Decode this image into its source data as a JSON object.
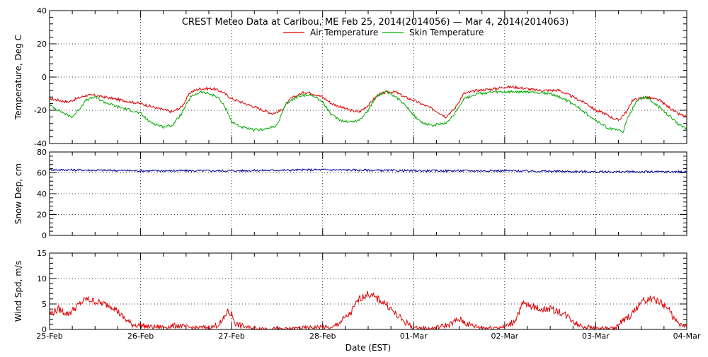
{
  "title": "CREST Meteo Data at Caribou, ME   Feb 25, 2014(2014056) — Mar  4, 2014(2014063)",
  "xlabel": "Date (EST)",
  "x_ticks": [
    "25-Feb",
    "26-Feb",
    "27-Feb",
    "28-Feb",
    "01-Mar",
    "02-Mar",
    "03-Mar",
    "04-Mar"
  ],
  "colors": {
    "air": "#dd0000",
    "skin": "#00aa00",
    "snow": "#000099",
    "wind": "#dd0000"
  },
  "chart_data": [
    {
      "type": "line",
      "ylabel": "Temperature, Deg C",
      "ylim": [
        -40,
        40
      ],
      "yticks": [
        "-40",
        "-20",
        "0",
        "20",
        "40"
      ],
      "xlim_days": [
        0,
        7
      ],
      "legend_position": "top-center",
      "series": [
        {
          "name": "Air Temperature",
          "color": "#dd0000",
          "points": [
            [
              0,
              -13
            ],
            [
              0.1,
              -14
            ],
            [
              0.2,
              -15
            ],
            [
              0.3,
              -13
            ],
            [
              0.4,
              -11
            ],
            [
              0.5,
              -11
            ],
            [
              0.6,
              -12
            ],
            [
              0.8,
              -14
            ],
            [
              1.0,
              -16
            ],
            [
              1.2,
              -19
            ],
            [
              1.35,
              -21
            ],
            [
              1.45,
              -18
            ],
            [
              1.55,
              -9
            ],
            [
              1.65,
              -7
            ],
            [
              1.8,
              -7
            ],
            [
              1.9,
              -9
            ],
            [
              2.0,
              -13
            ],
            [
              2.2,
              -17
            ],
            [
              2.35,
              -20
            ],
            [
              2.45,
              -22
            ],
            [
              2.55,
              -20
            ],
            [
              2.65,
              -13
            ],
            [
              2.8,
              -9
            ],
            [
              2.9,
              -10
            ],
            [
              3.0,
              -12
            ],
            [
              3.1,
              -16
            ],
            [
              3.3,
              -20
            ],
            [
              3.4,
              -21
            ],
            [
              3.5,
              -17
            ],
            [
              3.6,
              -11
            ],
            [
              3.7,
              -9
            ],
            [
              3.8,
              -9
            ],
            [
              3.9,
              -12
            ],
            [
              4.0,
              -14
            ],
            [
              4.2,
              -19
            ],
            [
              4.3,
              -22
            ],
            [
              4.35,
              -24
            ],
            [
              4.45,
              -19
            ],
            [
              4.55,
              -10
            ],
            [
              4.7,
              -8
            ],
            [
              4.9,
              -7
            ],
            [
              5.0,
              -6
            ],
            [
              5.1,
              -6
            ],
            [
              5.25,
              -7
            ],
            [
              5.35,
              -8
            ],
            [
              5.5,
              -8
            ],
            [
              5.6,
              -8
            ],
            [
              5.75,
              -12
            ],
            [
              5.9,
              -16
            ],
            [
              6.0,
              -20
            ],
            [
              6.1,
              -22
            ],
            [
              6.2,
              -25
            ],
            [
              6.25,
              -26
            ],
            [
              6.35,
              -20
            ],
            [
              6.4,
              -14
            ],
            [
              6.55,
              -12
            ],
            [
              6.7,
              -14
            ],
            [
              6.8,
              -18
            ],
            [
              6.9,
              -22
            ],
            [
              7.0,
              -24
            ]
          ]
        },
        {
          "name": "Skin Temperature",
          "color": "#00aa00",
          "points": [
            [
              0,
              -17
            ],
            [
              0.1,
              -20
            ],
            [
              0.2,
              -23
            ],
            [
              0.25,
              -24
            ],
            [
              0.3,
              -21
            ],
            [
              0.4,
              -14
            ],
            [
              0.5,
              -12
            ],
            [
              0.6,
              -15
            ],
            [
              0.75,
              -18
            ],
            [
              0.9,
              -20
            ],
            [
              1.0,
              -22
            ],
            [
              1.1,
              -27
            ],
            [
              1.25,
              -30
            ],
            [
              1.35,
              -29
            ],
            [
              1.45,
              -22
            ],
            [
              1.55,
              -12
            ],
            [
              1.65,
              -9
            ],
            [
              1.75,
              -10
            ],
            [
              1.85,
              -12
            ],
            [
              1.95,
              -20
            ],
            [
              2.0,
              -27
            ],
            [
              2.1,
              -30
            ],
            [
              2.25,
              -32
            ],
            [
              2.4,
              -31
            ],
            [
              2.5,
              -29
            ],
            [
              2.6,
              -16
            ],
            [
              2.75,
              -11
            ],
            [
              2.9,
              -11
            ],
            [
              3.0,
              -15
            ],
            [
              3.1,
              -23
            ],
            [
              3.2,
              -26
            ],
            [
              3.3,
              -27
            ],
            [
              3.4,
              -26
            ],
            [
              3.5,
              -20
            ],
            [
              3.6,
              -11
            ],
            [
              3.7,
              -9
            ],
            [
              3.8,
              -12
            ],
            [
              3.9,
              -16
            ],
            [
              4.0,
              -23
            ],
            [
              4.1,
              -28
            ],
            [
              4.2,
              -29
            ],
            [
              4.35,
              -28
            ],
            [
              4.45,
              -22
            ],
            [
              4.55,
              -13
            ],
            [
              4.7,
              -10
            ],
            [
              4.9,
              -9
            ],
            [
              5.1,
              -9
            ],
            [
              5.3,
              -9
            ],
            [
              5.5,
              -10
            ],
            [
              5.65,
              -13
            ],
            [
              5.8,
              -18
            ],
            [
              5.95,
              -24
            ],
            [
              6.05,
              -28
            ],
            [
              6.15,
              -31
            ],
            [
              6.25,
              -32
            ],
            [
              6.3,
              -33
            ],
            [
              6.35,
              -25
            ],
            [
              6.45,
              -14
            ],
            [
              6.55,
              -12
            ],
            [
              6.65,
              -16
            ],
            [
              6.8,
              -23
            ],
            [
              6.9,
              -28
            ],
            [
              7.0,
              -31
            ]
          ]
        }
      ]
    },
    {
      "type": "line",
      "ylabel": "Snow Dep, cm",
      "ylim": [
        0,
        80
      ],
      "yticks": [
        "0",
        "20",
        "40",
        "60",
        "80"
      ],
      "xlim_days": [
        0,
        7
      ],
      "series": [
        {
          "color": "#000099",
          "points": [
            [
              0,
              63
            ],
            [
              1,
              62
            ],
            [
              2,
              62
            ],
            [
              3,
              63
            ],
            [
              4,
              62
            ],
            [
              5,
              62
            ],
            [
              6,
              61
            ],
            [
              7,
              61
            ]
          ]
        }
      ]
    },
    {
      "type": "line",
      "ylabel": "Wind Spd, m/s",
      "ylim": [
        0,
        15
      ],
      "yticks": [
        "0",
        "5",
        "10",
        "15"
      ],
      "xlim_days": [
        0,
        7
      ],
      "series": [
        {
          "color": "#dd0000",
          "points": [
            [
              0,
              3
            ],
            [
              0.1,
              4
            ],
            [
              0.2,
              3
            ],
            [
              0.3,
              4.5
            ],
            [
              0.4,
              6
            ],
            [
              0.5,
              5.5
            ],
            [
              0.6,
              5
            ],
            [
              0.7,
              4.5
            ],
            [
              0.8,
              2.5
            ],
            [
              0.9,
              1
            ],
            [
              1.0,
              0.8
            ],
            [
              1.1,
              0.5
            ],
            [
              1.3,
              0.5
            ],
            [
              1.4,
              0.8
            ],
            [
              1.5,
              0.5
            ],
            [
              1.6,
              0.3
            ],
            [
              1.8,
              0.5
            ],
            [
              1.9,
              1.5
            ],
            [
              1.95,
              3.5
            ],
            [
              2.0,
              3
            ],
            [
              2.05,
              1
            ],
            [
              2.2,
              0.3
            ],
            [
              2.4,
              0.2
            ],
            [
              2.6,
              0.1
            ],
            [
              2.8,
              0.3
            ],
            [
              3.0,
              0.5
            ],
            [
              3.1,
              0.2
            ],
            [
              3.3,
              3
            ],
            [
              3.4,
              6
            ],
            [
              3.5,
              7
            ],
            [
              3.6,
              6
            ],
            [
              3.7,
              5
            ],
            [
              3.8,
              3
            ],
            [
              3.9,
              1.5
            ],
            [
              4.0,
              0.3
            ],
            [
              4.2,
              0.2
            ],
            [
              4.4,
              1
            ],
            [
              4.5,
              2
            ],
            [
              4.6,
              1
            ],
            [
              4.7,
              0.5
            ],
            [
              4.8,
              0.3
            ],
            [
              5.0,
              0.5
            ],
            [
              5.1,
              1.5
            ],
            [
              5.2,
              5
            ],
            [
              5.3,
              4.5
            ],
            [
              5.4,
              4
            ],
            [
              5.5,
              4
            ],
            [
              5.6,
              3.5
            ],
            [
              5.7,
              2.5
            ],
            [
              5.8,
              1
            ],
            [
              5.9,
              0.5
            ],
            [
              6.0,
              0.3
            ],
            [
              6.2,
              0.2
            ],
            [
              6.4,
              3
            ],
            [
              6.5,
              5.5
            ],
            [
              6.6,
              6
            ],
            [
              6.7,
              5.5
            ],
            [
              6.8,
              4
            ],
            [
              6.9,
              1
            ],
            [
              7.0,
              0.5
            ]
          ]
        }
      ]
    }
  ]
}
